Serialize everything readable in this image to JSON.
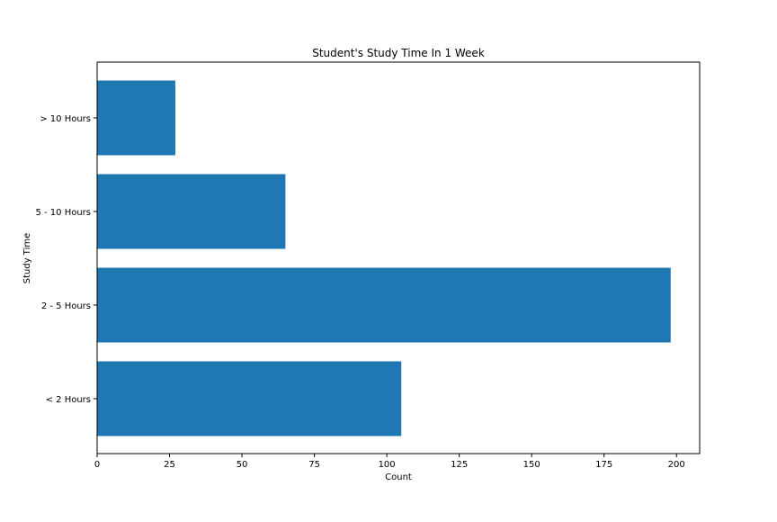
{
  "chart_data": {
    "type": "bar",
    "orientation": "horizontal",
    "title": "Student's Study Time In 1 Week",
    "xlabel": "Count",
    "ylabel": "Study Time",
    "categories": [
      "< 2 Hours",
      "2 - 5 Hours",
      "5 - 10 Hours",
      "> 10 Hours"
    ],
    "values": [
      105,
      198,
      65,
      27
    ],
    "xlim": [
      0,
      208
    ],
    "xticks": [
      0,
      25,
      50,
      75,
      100,
      125,
      150,
      175,
      200
    ],
    "bar_color": "#1f77b4",
    "grid": false,
    "legend": false
  }
}
